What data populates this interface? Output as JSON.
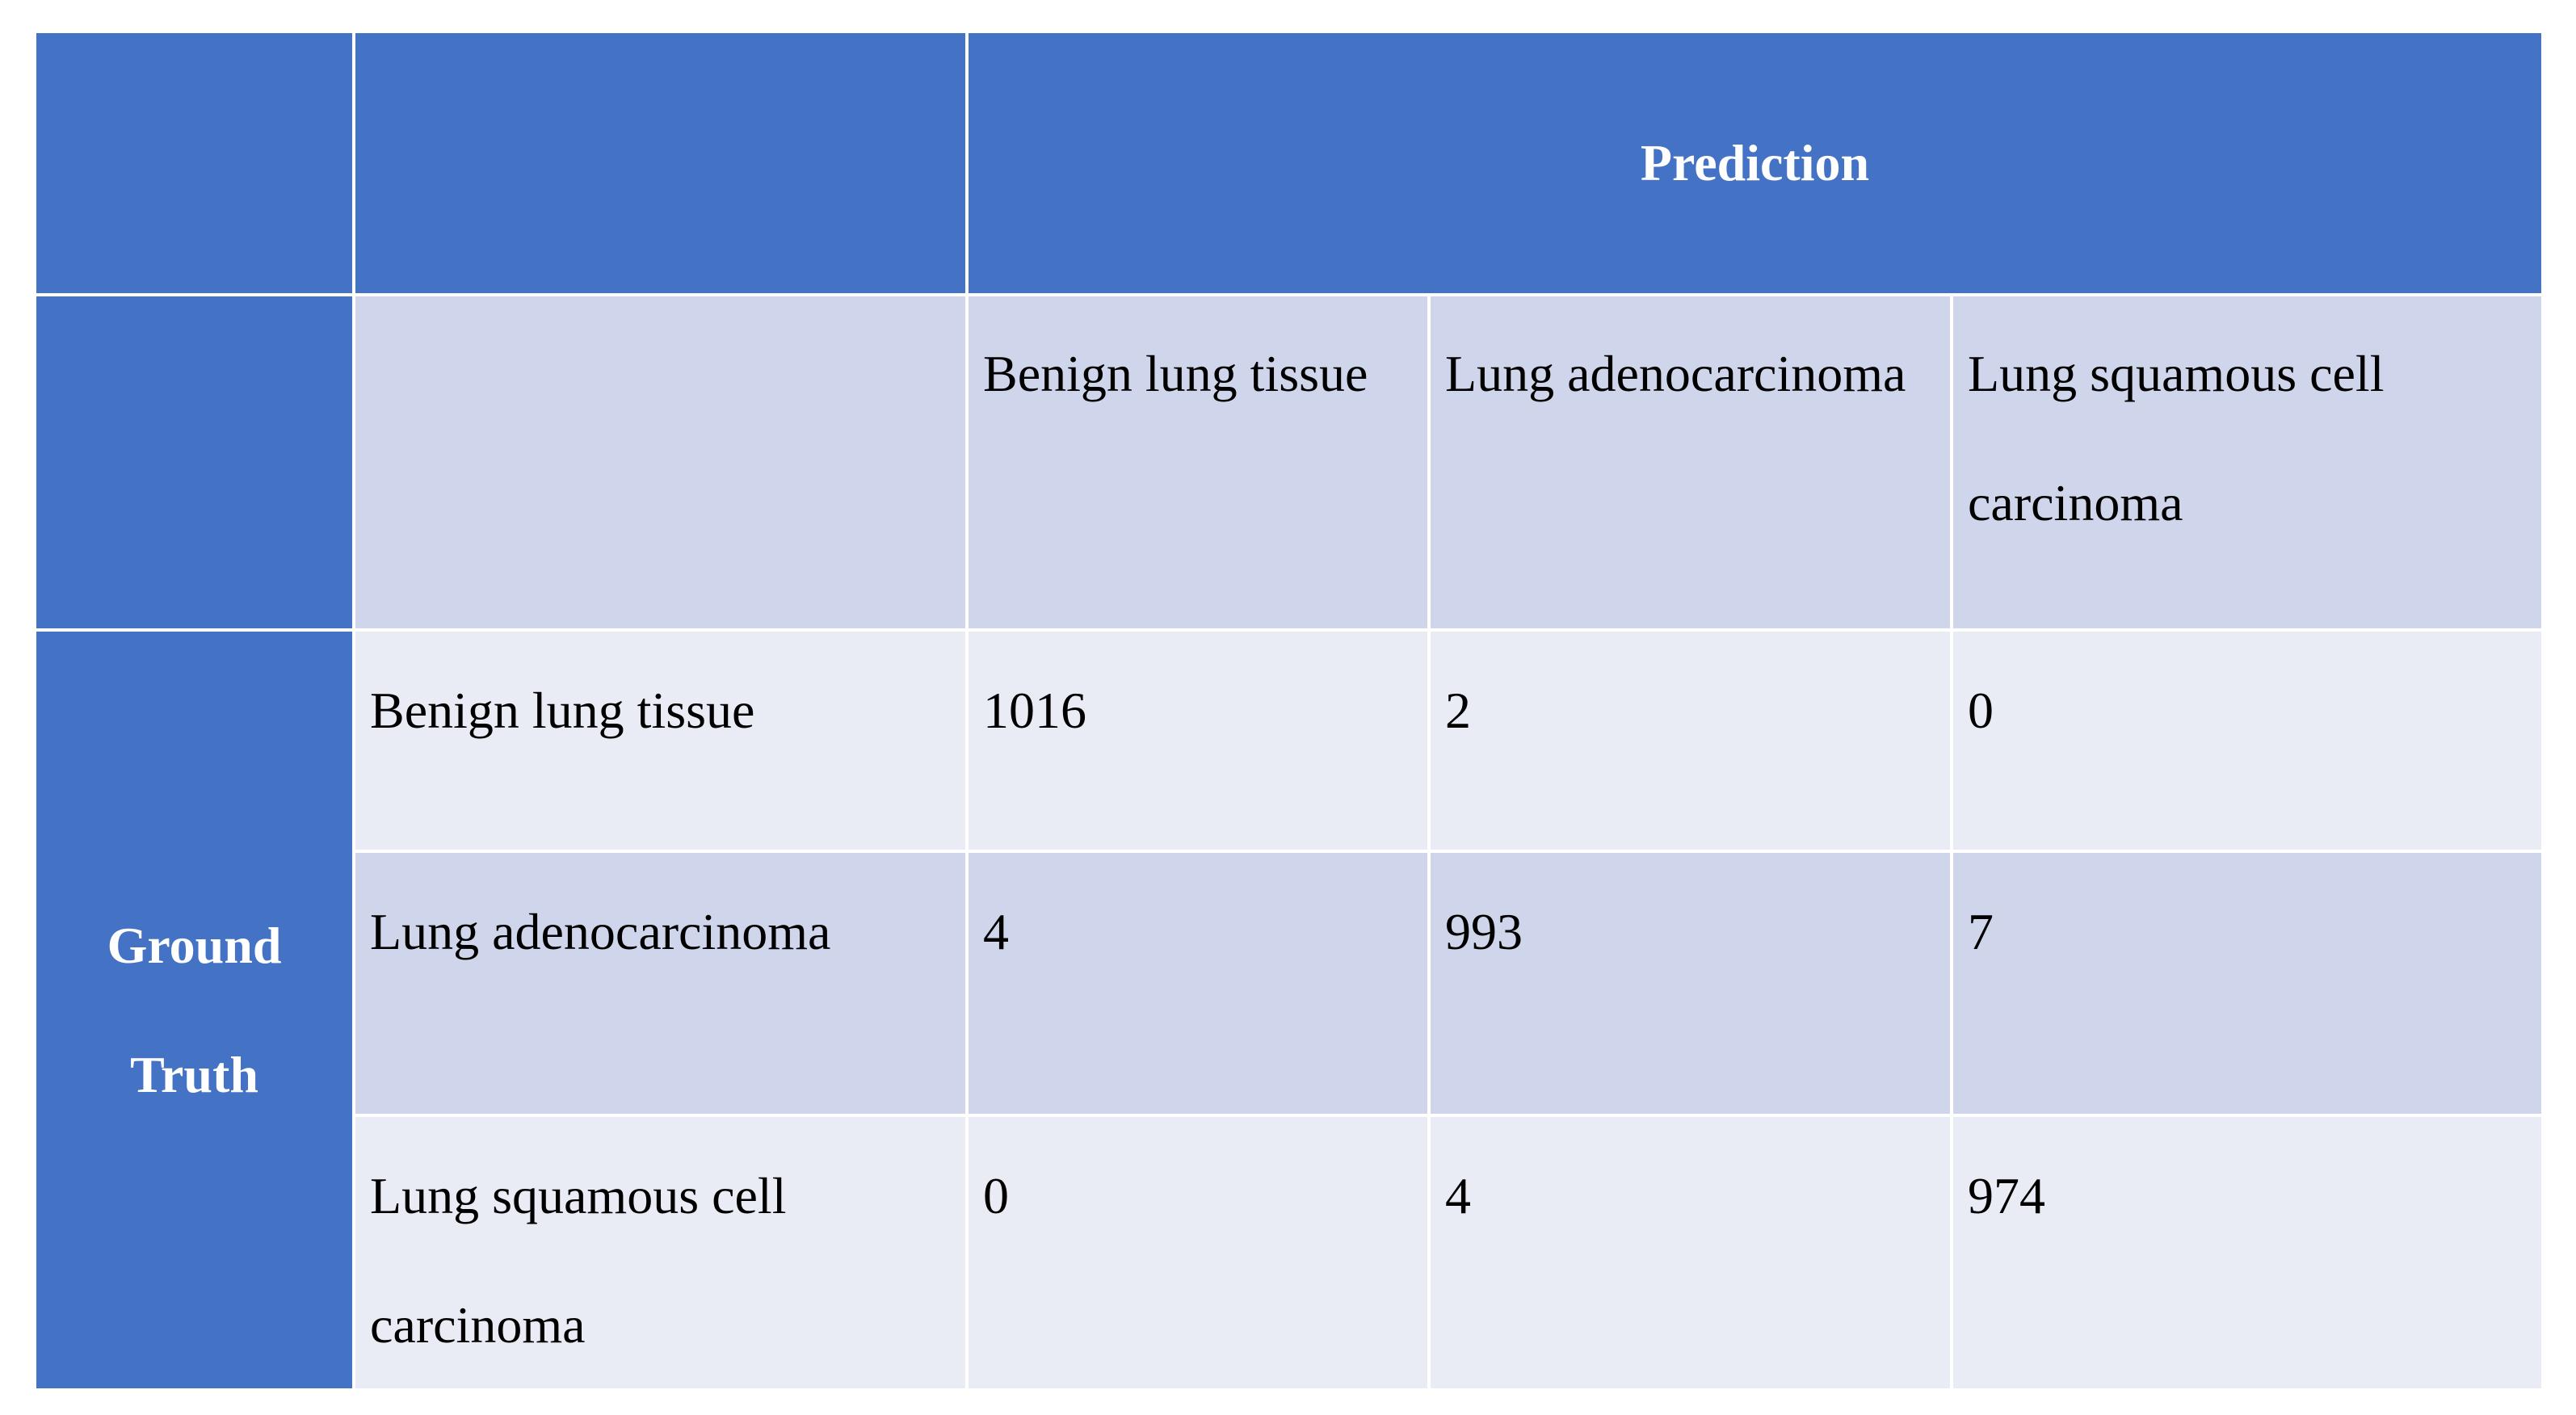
{
  "table": {
    "header": "Prediction",
    "row_header": "Ground Truth",
    "columns": [
      "Benign lung tissue",
      "Lung adenocarcinoma",
      "Lung squamous cell carcinoma"
    ],
    "rows": [
      {
        "label": "Benign lung tissue",
        "values": [
          1016,
          2,
          0
        ]
      },
      {
        "label": "Lung adenocarcinoma",
        "values": [
          4,
          993,
          7
        ]
      },
      {
        "label": "Lung squamous cell carcinoma",
        "values": [
          0,
          4,
          974
        ]
      }
    ]
  }
}
